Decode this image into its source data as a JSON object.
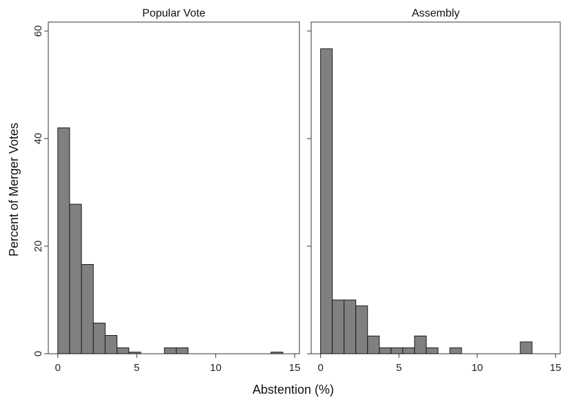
{
  "colors": {
    "bar_fill": "#808080",
    "bar_stroke": "#1a1a1a"
  },
  "chart_data": {
    "type": "bar",
    "subtype": "histogram",
    "xlabel": "Abstention (%)",
    "ylabel": "Percent of Merger Votes",
    "xlim": [
      -0.6,
      15.3
    ],
    "ylim": [
      0,
      62
    ],
    "xticks": [
      0,
      5,
      10,
      15
    ],
    "yticks": [
      0,
      20,
      40,
      60
    ],
    "bin_width": 0.75,
    "grid": false,
    "panels": [
      {
        "title": "Popular Vote",
        "bins": [
          {
            "x0": 0,
            "value": 42.0
          },
          {
            "x0": 0.75,
            "value": 27.8
          },
          {
            "x0": 1.5,
            "value": 16.6
          },
          {
            "x0": 2.25,
            "value": 5.7
          },
          {
            "x0": 3.0,
            "value": 3.4
          },
          {
            "x0": 3.75,
            "value": 1.1
          },
          {
            "x0": 4.5,
            "value": 0.3
          },
          {
            "x0": 6.75,
            "value": 1.1
          },
          {
            "x0": 7.5,
            "value": 1.1
          },
          {
            "x0": 13.5,
            "value": 0.3
          }
        ]
      },
      {
        "title": "Assembly",
        "bins": [
          {
            "x0": 0,
            "value": 56.7
          },
          {
            "x0": 0.75,
            "value": 10.0
          },
          {
            "x0": 1.5,
            "value": 10.0
          },
          {
            "x0": 2.25,
            "value": 8.9
          },
          {
            "x0": 3.0,
            "value": 3.3
          },
          {
            "x0": 3.75,
            "value": 1.1
          },
          {
            "x0": 4.5,
            "value": 1.1
          },
          {
            "x0": 5.25,
            "value": 1.1
          },
          {
            "x0": 6.0,
            "value": 3.3
          },
          {
            "x0": 6.75,
            "value": 1.1
          },
          {
            "x0": 8.25,
            "value": 1.1
          },
          {
            "x0": 12.75,
            "value": 2.2
          }
        ]
      }
    ]
  }
}
